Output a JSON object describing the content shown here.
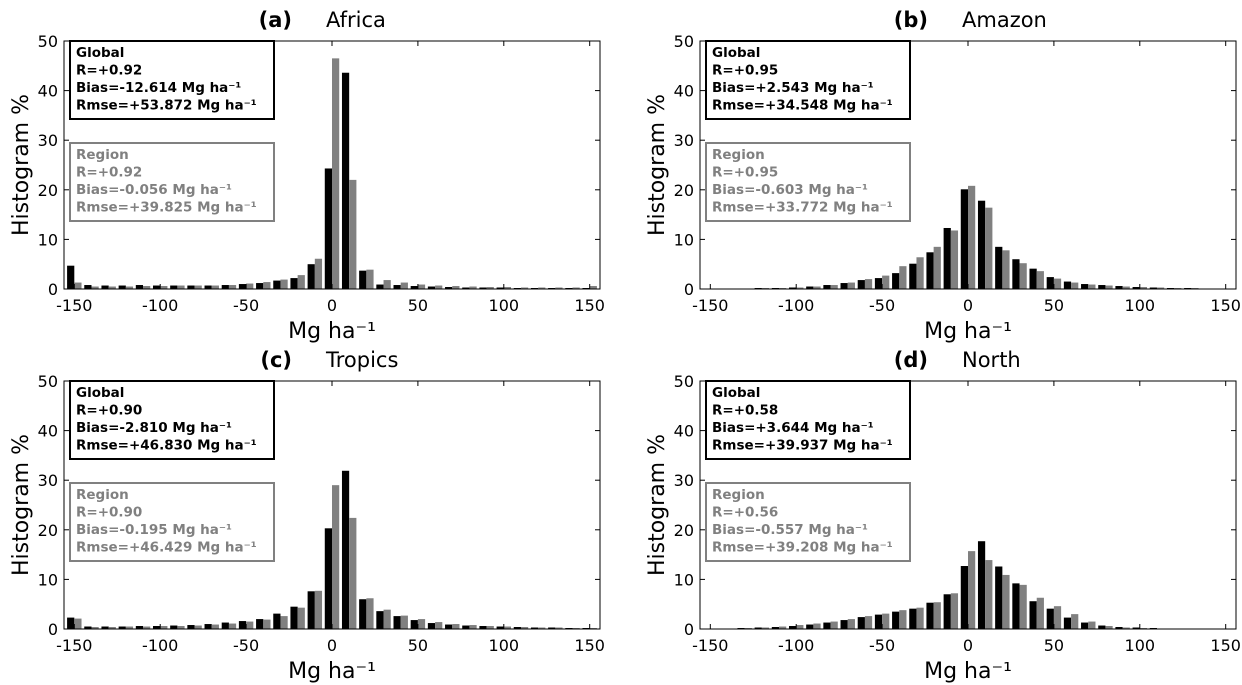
{
  "figure": {
    "y_axis_label": "Histogram %",
    "x_axis_label": "Mg ha⁻¹"
  },
  "colors": {
    "global": "#000000",
    "region": "#808080",
    "axis": "#000000"
  },
  "chart_data": [
    {
      "type": "bar",
      "panel": "(a)",
      "title": "Africa",
      "xlabel": "Mg ha⁻¹",
      "ylabel": "Histogram %",
      "xlim": [
        -150,
        150
      ],
      "ylim": [
        0,
        50
      ],
      "xticks": [
        "-150",
        "-100",
        "-50",
        "0",
        "50",
        "100",
        "150"
      ],
      "yticks": [
        "0",
        "10",
        "20",
        "30",
        "40",
        "50"
      ],
      "bin_width": 10,
      "x": [
        -150,
        -140,
        -130,
        -120,
        -110,
        -100,
        -90,
        -80,
        -70,
        -60,
        -50,
        -40,
        -30,
        -20,
        -10,
        0,
        10,
        20,
        30,
        40,
        50,
        60,
        70,
        80,
        90,
        100,
        110,
        120,
        130,
        140,
        150
      ],
      "series": [
        {
          "name": "Global",
          "values": [
            4.7,
            0.8,
            0.7,
            0.7,
            0.8,
            0.7,
            0.7,
            0.7,
            0.7,
            0.8,
            1.0,
            1.2,
            1.7,
            2.2,
            5.0,
            24.3,
            43.6,
            3.7,
            0.9,
            0.8,
            0.6,
            0.5,
            0.4,
            0.3,
            0.3,
            0.3,
            0.2,
            0.2,
            0.2,
            0.2,
            0.2
          ]
        },
        {
          "name": "Region",
          "values": [
            1.3,
            0.5,
            0.5,
            0.5,
            0.6,
            0.6,
            0.7,
            0.7,
            0.7,
            0.8,
            1.1,
            1.4,
            1.9,
            2.8,
            6.1,
            46.5,
            22.0,
            3.9,
            1.8,
            1.3,
            0.9,
            0.7,
            0.6,
            0.5,
            0.4,
            0.4,
            0.3,
            0.3,
            0.3,
            0.3,
            0.6
          ]
        }
      ],
      "annotations": {
        "global_box": [
          "Global",
          "R=+0.92",
          "Bias=-12.614 Mg ha⁻¹",
          "Rmse=+53.872 Mg ha⁻¹"
        ],
        "region_box": [
          "Region",
          "R=+0.92",
          "Bias=-0.056 Mg ha⁻¹",
          "Rmse=+39.825 Mg ha⁻¹"
        ]
      }
    },
    {
      "type": "bar",
      "panel": "(b)",
      "title": "Amazon",
      "xlabel": "Mg ha⁻¹",
      "ylabel": "Histogram %",
      "xlim": [
        -150,
        150
      ],
      "ylim": [
        0,
        50
      ],
      "xticks": [
        "-150",
        "-100",
        "-50",
        "0",
        "50",
        "100",
        "150"
      ],
      "yticks": [
        "0",
        "10",
        "20",
        "30",
        "40",
        "50"
      ],
      "bin_width": 10,
      "x": [
        -150,
        -140,
        -130,
        -120,
        -110,
        -100,
        -90,
        -80,
        -70,
        -60,
        -50,
        -40,
        -30,
        -20,
        -10,
        0,
        10,
        20,
        30,
        40,
        50,
        60,
        70,
        80,
        90,
        100,
        110,
        120,
        130,
        140,
        150
      ],
      "series": [
        {
          "name": "Global",
          "values": [
            0.1,
            0.1,
            0.1,
            0.2,
            0.2,
            0.3,
            0.5,
            0.8,
            1.2,
            1.8,
            2.2,
            3.2,
            5.1,
            7.4,
            12.3,
            20.1,
            17.8,
            8.5,
            6.0,
            4.1,
            2.4,
            1.5,
            1.0,
            0.8,
            0.6,
            0.4,
            0.3,
            0.2,
            0.2,
            0.1,
            0.1
          ]
        },
        {
          "name": "Region",
          "values": [
            0.1,
            0.1,
            0.1,
            0.2,
            0.2,
            0.3,
            0.5,
            0.8,
            1.3,
            2.0,
            2.7,
            4.6,
            6.4,
            8.5,
            11.8,
            20.8,
            16.4,
            7.8,
            5.2,
            3.6,
            2.1,
            1.3,
            0.9,
            0.7,
            0.5,
            0.4,
            0.3,
            0.2,
            0.2,
            0.1,
            0.1
          ]
        }
      ],
      "annotations": {
        "global_box": [
          "Global",
          "R=+0.95",
          "Bias=+2.543 Mg ha⁻¹",
          "Rmse=+34.548 Mg ha⁻¹"
        ],
        "region_box": [
          "Region",
          "R=+0.95",
          "Bias=-0.603 Mg ha⁻¹",
          "Rmse=+33.772 Mg ha⁻¹"
        ]
      }
    },
    {
      "type": "bar",
      "panel": "(c)",
      "title": "Tropics",
      "xlabel": "Mg ha⁻¹",
      "ylabel": "Histogram %",
      "xlim": [
        -150,
        150
      ],
      "ylim": [
        0,
        50
      ],
      "xticks": [
        "-150",
        "-100",
        "-50",
        "0",
        "50",
        "100",
        "150"
      ],
      "yticks": [
        "0",
        "10",
        "20",
        "30",
        "40",
        "50"
      ],
      "bin_width": 10,
      "x": [
        -150,
        -140,
        -130,
        -120,
        -110,
        -100,
        -90,
        -80,
        -70,
        -60,
        -50,
        -40,
        -30,
        -20,
        -10,
        0,
        10,
        20,
        30,
        40,
        50,
        60,
        70,
        80,
        90,
        100,
        110,
        120,
        130,
        140,
        150
      ],
      "series": [
        {
          "name": "Global",
          "values": [
            2.3,
            0.5,
            0.5,
            0.5,
            0.6,
            0.6,
            0.7,
            0.8,
            1.0,
            1.3,
            1.6,
            2.0,
            3.1,
            4.5,
            7.6,
            20.3,
            31.9,
            6.0,
            3.6,
            2.6,
            1.8,
            1.2,
            0.9,
            0.7,
            0.6,
            0.5,
            0.4,
            0.3,
            0.3,
            0.2,
            0.2
          ]
        },
        {
          "name": "Region",
          "values": [
            2.1,
            0.4,
            0.4,
            0.5,
            0.5,
            0.6,
            0.6,
            0.7,
            0.9,
            1.1,
            1.5,
            1.9,
            2.6,
            4.3,
            7.7,
            29.0,
            22.4,
            6.2,
            3.9,
            2.7,
            2.0,
            1.4,
            1.0,
            0.8,
            0.6,
            0.5,
            0.4,
            0.3,
            0.3,
            0.2,
            0.2
          ]
        }
      ],
      "annotations": {
        "global_box": [
          "Global",
          "R=+0.90",
          "Bias=-2.810 Mg ha⁻¹",
          "Rmse=+46.830 Mg ha⁻¹"
        ],
        "region_box": [
          "Region",
          "R=+0.90",
          "Bias=-0.195 Mg ha⁻¹",
          "Rmse=+46.429 Mg ha⁻¹"
        ]
      }
    },
    {
      "type": "bar",
      "panel": "(d)",
      "title": "North",
      "xlabel": "Mg ha⁻¹",
      "ylabel": "Histogram %",
      "xlim": [
        -150,
        150
      ],
      "ylim": [
        0,
        50
      ],
      "xticks": [
        "-150",
        "-100",
        "-50",
        "0",
        "50",
        "100",
        "150"
      ],
      "yticks": [
        "0",
        "10",
        "20",
        "30",
        "40",
        "50"
      ],
      "bin_width": 10,
      "x": [
        -150,
        -140,
        -130,
        -120,
        -110,
        -100,
        -90,
        -80,
        -70,
        -60,
        -50,
        -40,
        -30,
        -20,
        -10,
        0,
        10,
        20,
        30,
        40,
        50,
        60,
        70,
        80,
        90,
        100,
        110,
        120,
        130,
        140,
        150
      ],
      "series": [
        {
          "name": "Global",
          "values": [
            0.1,
            0.1,
            0.2,
            0.3,
            0.4,
            0.6,
            0.9,
            1.3,
            1.8,
            2.4,
            2.9,
            3.5,
            4.1,
            5.3,
            7.0,
            12.7,
            17.7,
            12.6,
            9.2,
            5.6,
            4.1,
            2.3,
            1.3,
            0.7,
            0.4,
            0.3,
            0.2,
            0.1,
            0.1,
            0.1,
            0.1
          ]
        },
        {
          "name": "Region",
          "values": [
            0.1,
            0.1,
            0.2,
            0.3,
            0.5,
            0.8,
            1.1,
            1.5,
            2.0,
            2.6,
            3.1,
            3.8,
            4.3,
            5.4,
            7.2,
            15.7,
            13.9,
            10.9,
            8.9,
            6.3,
            4.6,
            3.0,
            1.5,
            0.6,
            0.3,
            0.2,
            0.1,
            0.1,
            0.1,
            0.1,
            0.1
          ]
        }
      ],
      "annotations": {
        "global_box": [
          "Global",
          "R=+0.58",
          "Bias=+3.644 Mg ha⁻¹",
          "Rmse=+39.937 Mg ha⁻¹"
        ],
        "region_box": [
          "Region",
          "R=+0.56",
          "Bias=-0.557 Mg ha⁻¹",
          "Rmse=+39.208 Mg ha⁻¹"
        ]
      }
    }
  ]
}
